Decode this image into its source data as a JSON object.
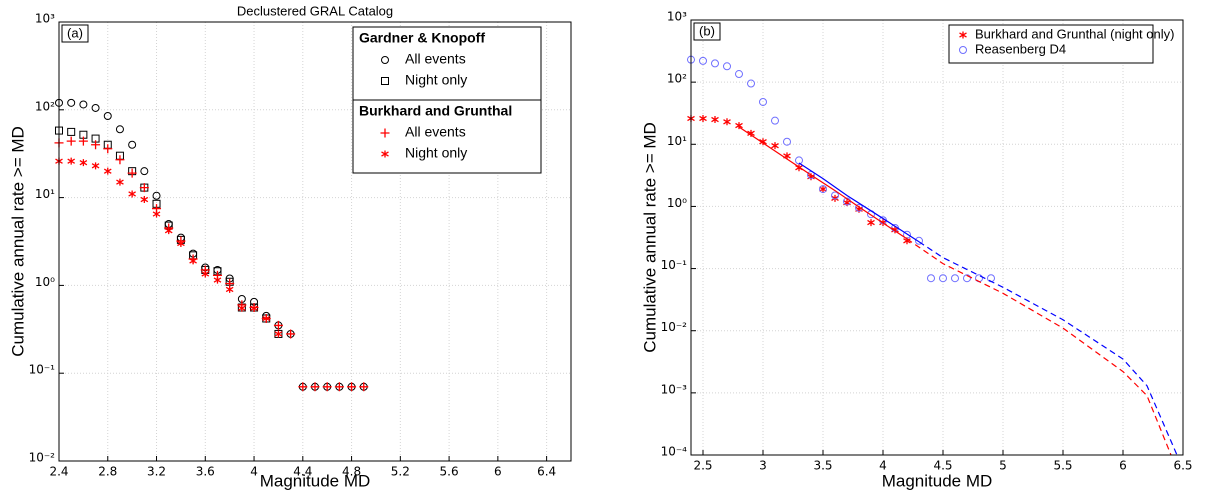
{
  "chart_data": [
    {
      "type": "scatter",
      "title": "Declustered GRAL Catalog",
      "annotation": "(a)",
      "xlabel": "Magnitude MD",
      "ylabel": "Cumulative annual rate >= MD",
      "xlim": [
        2.4,
        6.6
      ],
      "xticks": [
        2.4,
        2.8,
        3.2,
        3.6,
        4,
        4.4,
        4.8,
        5.2,
        5.6,
        6,
        6.4
      ],
      "ylim": [
        0.01,
        1000
      ],
      "ylog": true,
      "grid": true,
      "legend": "upper right",
      "yticks": [
        {
          "value": 0.01,
          "label": "10⁻²"
        },
        {
          "value": 0.1,
          "label": "10⁻¹"
        },
        {
          "value": 1,
          "label": "10⁰"
        },
        {
          "value": 10,
          "label": "10¹"
        },
        {
          "value": 100,
          "label": "10²"
        },
        {
          "value": 1000,
          "label": "10³"
        }
      ],
      "x": [
        2.4,
        2.5,
        2.6,
        2.7,
        2.8,
        2.9,
        3.0,
        3.1,
        3.2,
        3.3,
        3.4,
        3.5,
        3.6,
        3.7,
        3.8,
        3.9,
        4.0,
        4.1,
        4.2,
        4.3,
        4.4,
        4.5,
        4.6,
        4.7,
        4.8,
        4.9
      ],
      "series": [
        {
          "group": "Gardner & Knopoff",
          "name": "All events",
          "marker": "o",
          "color": "#000000",
          "values": [
            120,
            120,
            115,
            105,
            85,
            60,
            40,
            20,
            10.5,
            5,
            3.5,
            2.3,
            1.6,
            1.5,
            1.2,
            0.7,
            0.65,
            0.45,
            0.35,
            0.28,
            0.07,
            0.07,
            0.07,
            0.07,
            0.07,
            0.07
          ]
        },
        {
          "group": "Gardner & Knopoff",
          "name": "Night only",
          "marker": "s",
          "color": "#000000",
          "values": [
            58,
            56,
            52,
            47,
            40,
            30,
            20,
            13,
            8.5,
            4.8,
            3.3,
            2.2,
            1.5,
            1.45,
            1.1,
            0.56,
            0.56,
            0.42,
            0.28,
            null,
            null,
            null,
            null,
            null,
            null,
            null
          ]
        },
        {
          "group": "Burkhard and Grunthal",
          "name": "All events",
          "marker": "+",
          "color": "#ff0000",
          "values": [
            42,
            44,
            44,
            40,
            36,
            27,
            19,
            13,
            7.5,
            4.5,
            3.2,
            2.0,
            1.5,
            1.3,
            1.05,
            0.6,
            0.56,
            0.42,
            0.35,
            0.28,
            0.07,
            0.07,
            0.07,
            0.07,
            0.07,
            0.07
          ]
        },
        {
          "group": "Burkhard and Grunthal",
          "name": "Night only",
          "marker": "*",
          "color": "#ff0000",
          "values": [
            26,
            26,
            25,
            23,
            20,
            15,
            11,
            9.5,
            6.5,
            4.2,
            3.0,
            1.9,
            1.35,
            1.15,
            0.9,
            0.55,
            0.55,
            0.42,
            0.28,
            null,
            null,
            null,
            null,
            null,
            null,
            null
          ]
        }
      ]
    },
    {
      "type": "scatter",
      "annotation": "(b)",
      "xlabel": "Magnitude MD",
      "ylabel": "Cumulative annual rate >= MD",
      "xlim": [
        2.4,
        6.5
      ],
      "xticks": [
        2.5,
        3,
        3.5,
        4,
        4.5,
        5,
        5.5,
        6,
        6.5
      ],
      "ylim": [
        0.0001,
        1000
      ],
      "ylog": true,
      "grid": true,
      "legend": "upper right",
      "yticks": [
        {
          "value": 0.0001,
          "label": "10⁻⁴"
        },
        {
          "value": 0.001,
          "label": "10⁻³"
        },
        {
          "value": 0.01,
          "label": "10⁻²"
        },
        {
          "value": 0.1,
          "label": "10⁻¹"
        },
        {
          "value": 1,
          "label": "10⁰"
        },
        {
          "value": 10,
          "label": "10¹"
        },
        {
          "value": 100,
          "label": "10²"
        },
        {
          "value": 1000,
          "label": "10³"
        }
      ],
      "x": [
        2.4,
        2.5,
        2.6,
        2.7,
        2.8,
        2.9,
        3.0,
        3.1,
        3.2,
        3.3,
        3.4,
        3.5,
        3.6,
        3.7,
        3.8,
        3.9,
        4.0,
        4.1,
        4.2,
        4.3,
        4.4,
        4.5,
        4.6,
        4.7,
        4.8,
        4.9
      ],
      "series": [
        {
          "name": "Burkhard and Grunthal (night only)",
          "marker": "*",
          "color": "#ff0000",
          "values": [
            26,
            26,
            25,
            23,
            20,
            15,
            11,
            9.5,
            6.5,
            4.2,
            3.0,
            1.9,
            1.35,
            1.15,
            0.9,
            0.55,
            0.55,
            0.42,
            0.28,
            null,
            null,
            null,
            null,
            null,
            null,
            null
          ]
        },
        {
          "name": "Reasenberg D4",
          "marker": "o",
          "color": "#6f6fff",
          "values": [
            230,
            220,
            200,
            180,
            135,
            95,
            48,
            24,
            11,
            5.5,
            3.2,
            1.9,
            1.5,
            1.2,
            0.95,
            0.75,
            0.6,
            0.45,
            0.35,
            0.28,
            0.07,
            0.07,
            0.07,
            0.07,
            0.07,
            0.07
          ]
        },
        {
          "style": "solid",
          "color": "#ff0000",
          "x": [
            2.8,
            3.0,
            3.2,
            3.4,
            3.6,
            3.8,
            4.0,
            4.2
          ],
          "values": [
            19,
            10.5,
            5.8,
            3.2,
            1.8,
            0.98,
            0.54,
            0.3
          ]
        },
        {
          "style": "dashed",
          "color": "#ff0000",
          "x": [
            4.2,
            4.5,
            5.0,
            5.5,
            6.0,
            6.2,
            6.4
          ],
          "values": [
            0.3,
            0.12,
            0.04,
            0.011,
            0.0022,
            0.0009,
            0.0001
          ]
        },
        {
          "style": "solid",
          "color": "#0000ff",
          "x": [
            3.3,
            3.5,
            3.7,
            3.9,
            4.1,
            4.3
          ],
          "values": [
            5,
            2.8,
            1.5,
            0.85,
            0.48,
            0.27
          ]
        },
        {
          "style": "dashed",
          "color": "#0000ff",
          "x": [
            4.3,
            4.5,
            5.0,
            5.5,
            6.0,
            6.2,
            6.45
          ],
          "values": [
            0.27,
            0.15,
            0.05,
            0.015,
            0.0035,
            0.0013,
            0.0001
          ]
        }
      ]
    }
  ]
}
